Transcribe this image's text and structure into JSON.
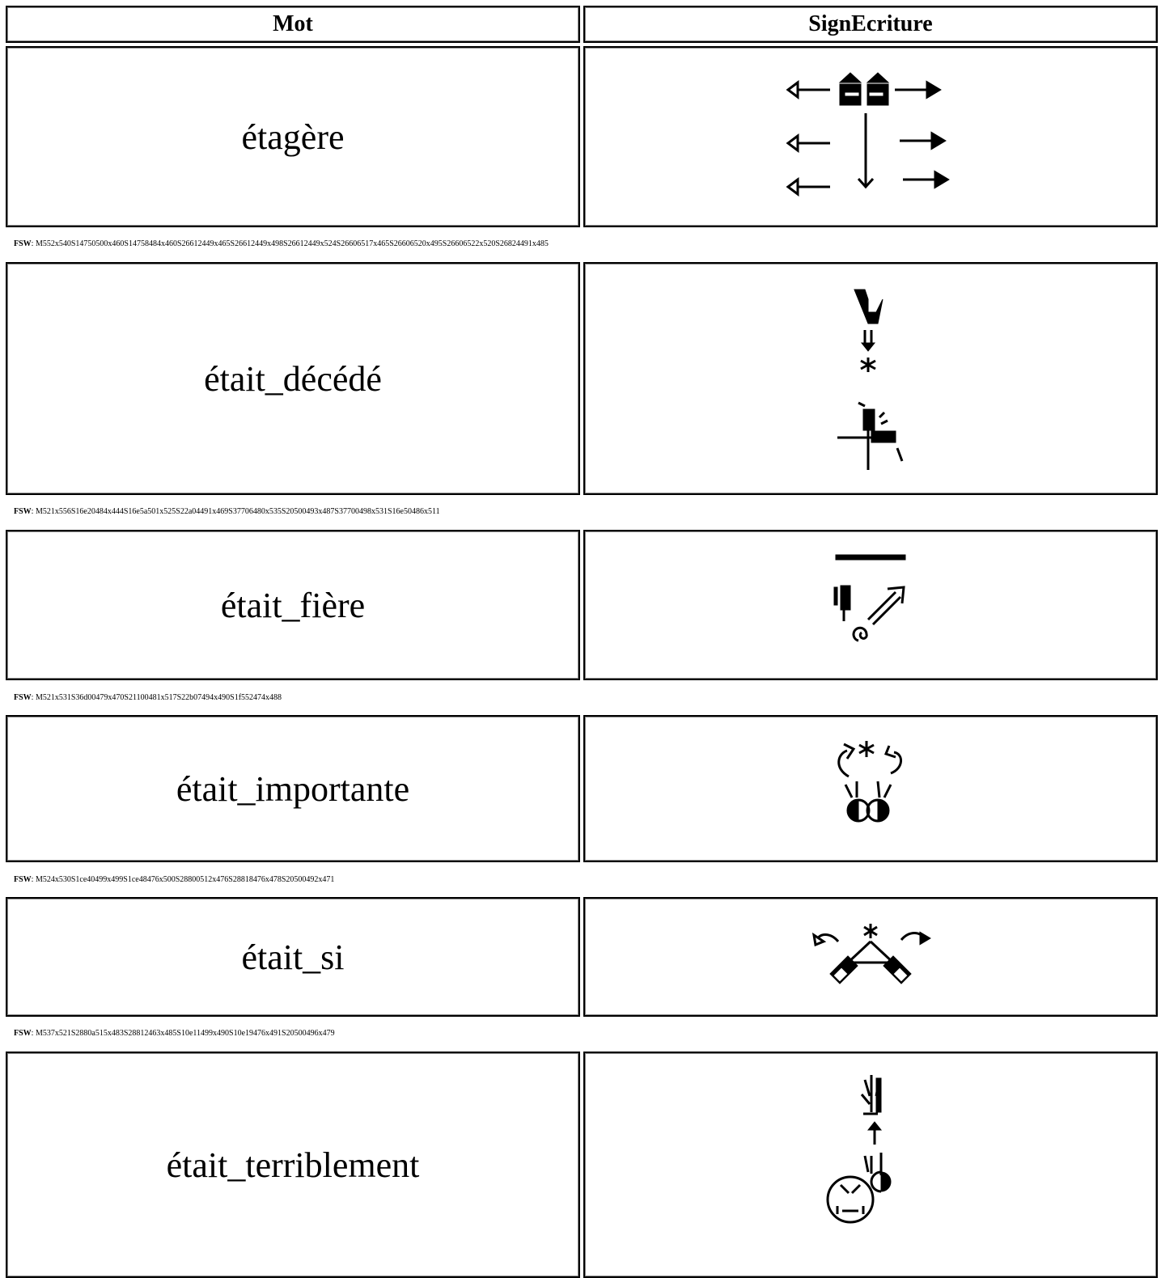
{
  "header": {
    "word": "Mot",
    "sign": "SignEcriture"
  },
  "fsw_label": "FSW",
  "rows": [
    {
      "word": "étagère",
      "fsw": ": M552x540S14750500x460S14758484x460S26612449x465S26612449x498S26612449x524S26606517x465S26606520x495S26606522x520S26824491x485"
    },
    {
      "word": "était_décédé",
      "fsw": ": M521x556S16e20484x444S16e5a501x525S22a04491x469S37706480x535S20500493x487S37700498x531S16e50486x511"
    },
    {
      "word": "était_fière",
      "fsw": ": M521x531S36d00479x470S21100481x517S22b07494x490S1f552474x488"
    },
    {
      "word": "était_importante",
      "fsw": ": M524x530S1ce40499x499S1ce48476x500S28800512x476S28818476x478S20500492x471"
    },
    {
      "word": "était_si",
      "fsw": ": M537x521S2880a515x483S28812463x485S10e11499x490S10e19476x491S20500496x479"
    },
    {
      "word": "était_terriblement"
    }
  ]
}
